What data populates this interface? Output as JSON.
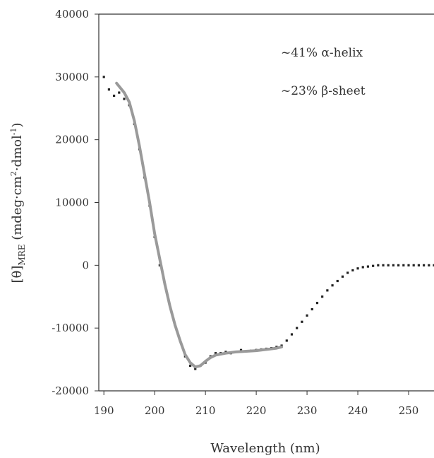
{
  "chart_data": {
    "type": "scatter",
    "xlabel": "Wavelength (nm)",
    "ylabel_main": "[θ]",
    "ylabel_sub": "MRE",
    "ylabel_rest": " (mdeg·cm",
    "ylabel_sup1": "2",
    "ylabel_mid": "·dmol",
    "ylabel_sup2": "-1",
    "ylabel_end": ")",
    "xlim": [
      189,
      255
    ],
    "ylim": [
      -20000,
      40000
    ],
    "x_ticks": [
      190,
      200,
      210,
      220,
      230,
      240,
      250
    ],
    "y_ticks": [
      -20000,
      -10000,
      0,
      10000,
      20000,
      30000,
      40000
    ],
    "annotations": [
      "~41%  α-helix",
      "~23%  β-sheet"
    ],
    "series": [
      {
        "kind": "points",
        "x": [
          190,
          191,
          192,
          193,
          194,
          195,
          196,
          197,
          198,
          199,
          200,
          201,
          202,
          203,
          204,
          205,
          206,
          207,
          208,
          209,
          210,
          211,
          212,
          213,
          214,
          215,
          216,
          217,
          218,
          219,
          220,
          221,
          222,
          223,
          224,
          225,
          226,
          227,
          228,
          229,
          230,
          231,
          232,
          233,
          234,
          235,
          236,
          237,
          238,
          239,
          240,
          241,
          242,
          243,
          244,
          245,
          246,
          247,
          248,
          249,
          250,
          251,
          252,
          253,
          254,
          255
        ],
        "y": [
          30000,
          28000,
          27000,
          27500,
          26500,
          25500,
          22500,
          18500,
          14000,
          9500,
          4500,
          0,
          -3000,
          -6500,
          -9500,
          -12000,
          -14500,
          -16000,
          -16500,
          -16000,
          -15500,
          -14500,
          -14000,
          -14000,
          -13800,
          -14000,
          -13800,
          -13500,
          -13700,
          -13600,
          -13500,
          -13400,
          -13300,
          -13200,
          -13000,
          -12800,
          -12000,
          -11000,
          -10000,
          -9000,
          -8000,
          -7000,
          -6000,
          -5000,
          -4000,
          -3200,
          -2500,
          -1800,
          -1200,
          -800,
          -500,
          -300,
          -200,
          -100,
          0,
          0,
          0,
          0,
          0,
          0,
          0,
          0,
          0,
          0,
          0,
          0
        ]
      },
      {
        "kind": "fit-line",
        "color": "#9a9a9a",
        "x": [
          192.5,
          194,
          195,
          196,
          197,
          198,
          199,
          200,
          201,
          202,
          203,
          204,
          205,
          206,
          207,
          208,
          209,
          210,
          211,
          212,
          214,
          216,
          218,
          220,
          222,
          224,
          225
        ],
        "y": [
          29000,
          27500,
          26000,
          23000,
          19000,
          14500,
          10000,
          5000,
          1000,
          -3000,
          -6500,
          -9500,
          -12000,
          -14200,
          -15500,
          -16200,
          -16000,
          -15300,
          -14700,
          -14300,
          -14000,
          -13800,
          -13700,
          -13600,
          -13400,
          -13200,
          -13000
        ]
      }
    ]
  }
}
